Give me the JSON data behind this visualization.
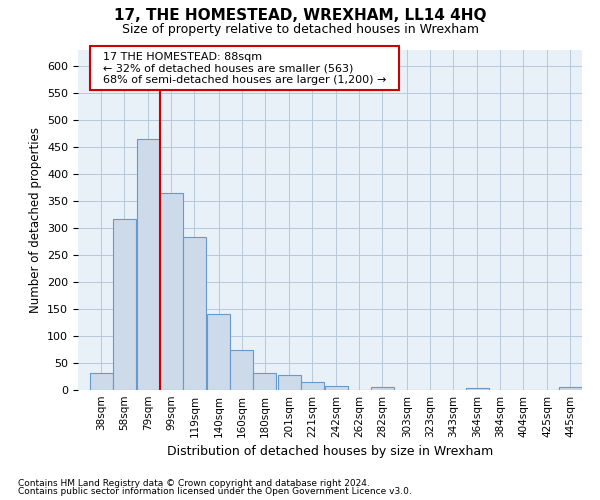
{
  "title": "17, THE HOMESTEAD, WREXHAM, LL14 4HQ",
  "subtitle": "Size of property relative to detached houses in Wrexham",
  "xlabel": "Distribution of detached houses by size in Wrexham",
  "ylabel": "Number of detached properties",
  "footer_line1": "Contains HM Land Registry data © Crown copyright and database right 2024.",
  "footer_line2": "Contains public sector information licensed under the Open Government Licence v3.0.",
  "annotation_title": "17 THE HOMESTEAD: 88sqm",
  "annotation_line1": "← 32% of detached houses are smaller (563)",
  "annotation_line2": "68% of semi-detached houses are larger (1,200) →",
  "bar_color": "#ccdaea",
  "bar_edge_color": "#6699cc",
  "redline_color": "#cc0000",
  "annotation_box_edge_color": "#cc0000",
  "categories": [
    38,
    58,
    79,
    99,
    119,
    140,
    160,
    180,
    201,
    221,
    242,
    262,
    282,
    303,
    323,
    343,
    364,
    384,
    404,
    425,
    445
  ],
  "values": [
    31,
    317,
    465,
    365,
    284,
    141,
    75,
    31,
    27,
    15,
    8,
    0,
    5,
    0,
    0,
    0,
    4,
    0,
    0,
    0,
    5
  ],
  "ylim": [
    0,
    630
  ],
  "yticks": [
    0,
    50,
    100,
    150,
    200,
    250,
    300,
    350,
    400,
    450,
    500,
    550,
    600
  ],
  "grid_color": "#b8c8dc",
  "bg_color": "#e8f0f8",
  "bin_width": 20
}
